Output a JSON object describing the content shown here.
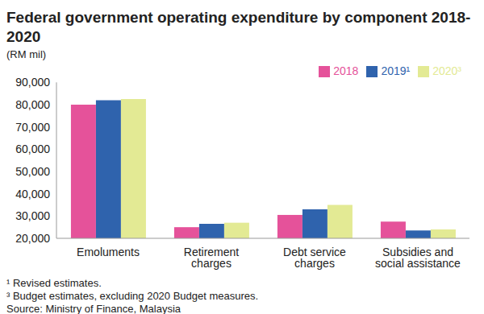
{
  "chart_data": {
    "type": "bar",
    "title": "Federal government operating expenditure by component 2018-2020",
    "y_label": "(RM mil)",
    "categories": [
      "Emoluments",
      "Retirement charges",
      "Debt service charges",
      "Subsidies and social assistance"
    ],
    "series": [
      {
        "name": "2018",
        "color": "#e5529a",
        "values": [
          80000,
          25000,
          30500,
          27500
        ]
      },
      {
        "name": "2019¹",
        "color": "#2f63ad",
        "values": [
          82000,
          26500,
          33000,
          23500
        ]
      },
      {
        "name": "2020³",
        "color": "#e3ea94",
        "values": [
          82500,
          27000,
          35000,
          24000
        ]
      }
    ],
    "ylim": [
      20000,
      90000
    ],
    "yticks": [
      {
        "value": 20000,
        "label": "20,000"
      },
      {
        "value": 30000,
        "label": "30,000"
      },
      {
        "value": 40000,
        "label": "40,000"
      },
      {
        "value": 50000,
        "label": "50,000"
      },
      {
        "value": 60000,
        "label": "60,000"
      },
      {
        "value": 70000,
        "label": "70,000"
      },
      {
        "value": 80000,
        "label": "80,000"
      },
      {
        "value": 90000,
        "label": "90,000"
      }
    ],
    "grid": false,
    "legend": "top right",
    "notes": [
      "¹ Revised estimates.",
      "³ Budget estimates, excluding 2020 Budget measures.",
      "Source: Ministry of Finance, Malaysia"
    ]
  }
}
